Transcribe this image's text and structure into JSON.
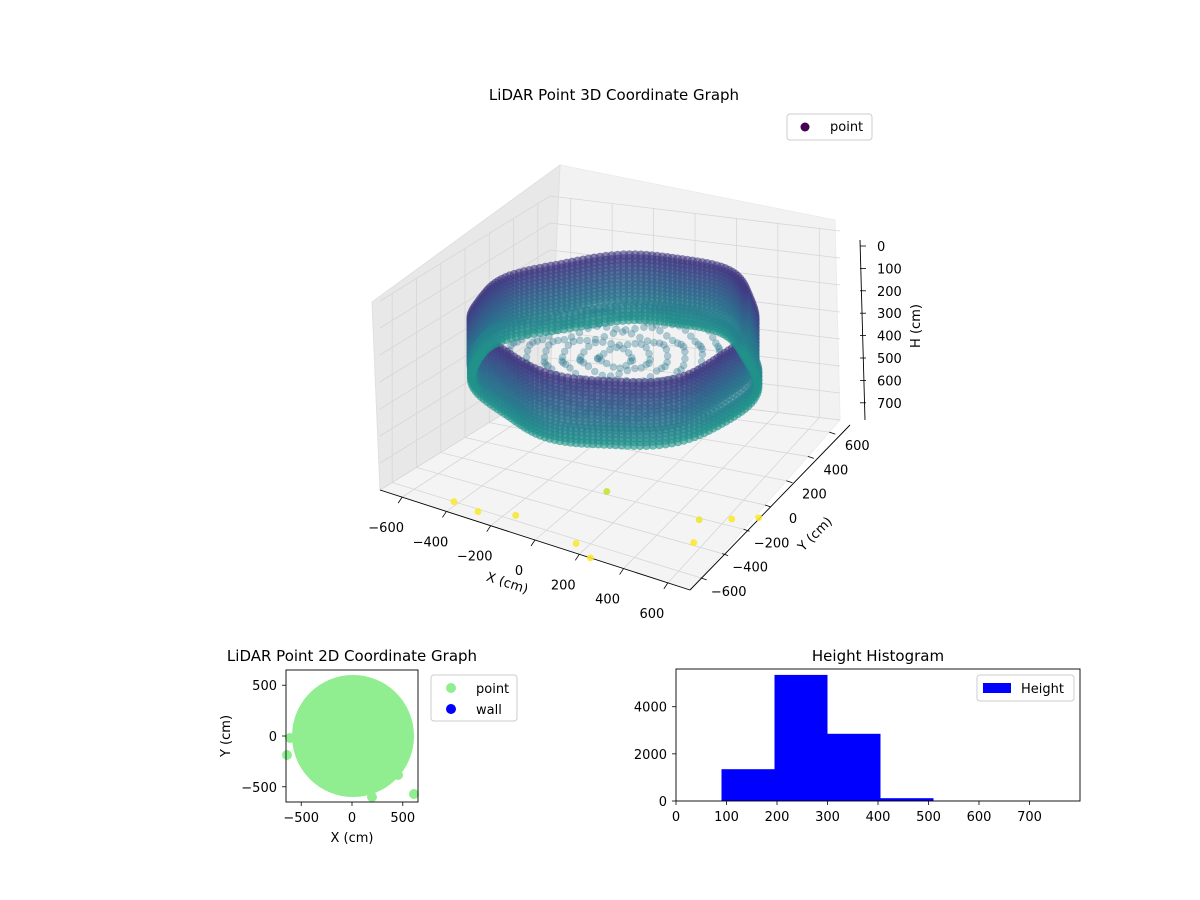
{
  "colors": {
    "viridis_dark": "#440154",
    "viridis_mid": "#3b528b",
    "viridis_teal": "#21918c",
    "viridis_green": "#5ec962",
    "point_2d": "#90ee90",
    "wall_2d": "#0000ff",
    "hist_bar": "#0000ff"
  },
  "chart_data": [
    {
      "type": "scatter",
      "projection": "3d",
      "title": "LiDAR Point 3D Coordinate Graph",
      "xlabel": "X (cm)",
      "ylabel": "Y (cm)",
      "zlabel": "H (cm)",
      "xticks": [
        "−600",
        "−400",
        "−200",
        "0",
        "200",
        "400",
        "600"
      ],
      "yticks": [
        "−600",
        "−400",
        "−200",
        "0",
        "200",
        "400",
        "600"
      ],
      "zticks": [
        "0",
        "100",
        "200",
        "300",
        "400",
        "500",
        "600",
        "700"
      ],
      "zinverted": true,
      "legend": [
        "point"
      ],
      "legend_loc": "upper right",
      "colormap": "viridis",
      "shape": "ring wall of radius about 580 cm from height 120 to 300 cm, floor at about 280 cm, scattered outliers down to 700 cm",
      "ring_radius": 580,
      "wall_top": 120,
      "wall_bottom": 300,
      "floor_height": 280,
      "outliers": [
        {
          "x": -420,
          "y": -600,
          "h": 700
        },
        {
          "x": -300,
          "y": -620,
          "h": 700
        },
        {
          "x": -150,
          "y": -580,
          "h": 690
        },
        {
          "x": 150,
          "y": -630,
          "h": 700
        },
        {
          "x": 120,
          "y": -300,
          "h": 640
        },
        {
          "x": 520,
          "y": -250,
          "h": 680
        },
        {
          "x": 560,
          "y": -380,
          "h": 700
        },
        {
          "x": 620,
          "y": -150,
          "h": 700
        },
        {
          "x": 700,
          "y": -60,
          "h": 720
        },
        {
          "x": 250,
          "y": -700,
          "h": 700
        }
      ]
    },
    {
      "type": "scatter",
      "title": "LiDAR Point 2D Coordinate Graph",
      "xlabel": "X (cm)",
      "ylabel": "Y (cm)",
      "xticks": [
        "−500",
        "0",
        "500"
      ],
      "yticks": [
        "500",
        "0",
        "−500"
      ],
      "xlim": [
        -650,
        650
      ],
      "ylim": [
        -650,
        650
      ],
      "legend": [
        "point",
        "wall"
      ],
      "legend_loc": "outside upper right",
      "shape": "filled disc of radius about 590 cm centred at origin"
    },
    {
      "type": "bar",
      "title": "Height Histogram",
      "xlabel": "",
      "ylabel": "",
      "legend": [
        "Height"
      ],
      "legend_loc": "upper right",
      "xlim": [
        0,
        800
      ],
      "ylim": [
        0,
        5600
      ],
      "xticks": [
        "0",
        "100",
        "200",
        "300",
        "400",
        "500",
        "600",
        "700"
      ],
      "yticks": [
        "0",
        "2000",
        "4000"
      ],
      "bins": [
        {
          "x0": 90,
          "x1": 195,
          "count": 1350
        },
        {
          "x0": 195,
          "x1": 300,
          "count": 5350
        },
        {
          "x0": 300,
          "x1": 405,
          "count": 2850
        },
        {
          "x0": 405,
          "x1": 510,
          "count": 120
        },
        {
          "x0": 510,
          "x1": 615,
          "count": 8
        },
        {
          "x0": 615,
          "x1": 720,
          "count": 4
        }
      ]
    }
  ]
}
